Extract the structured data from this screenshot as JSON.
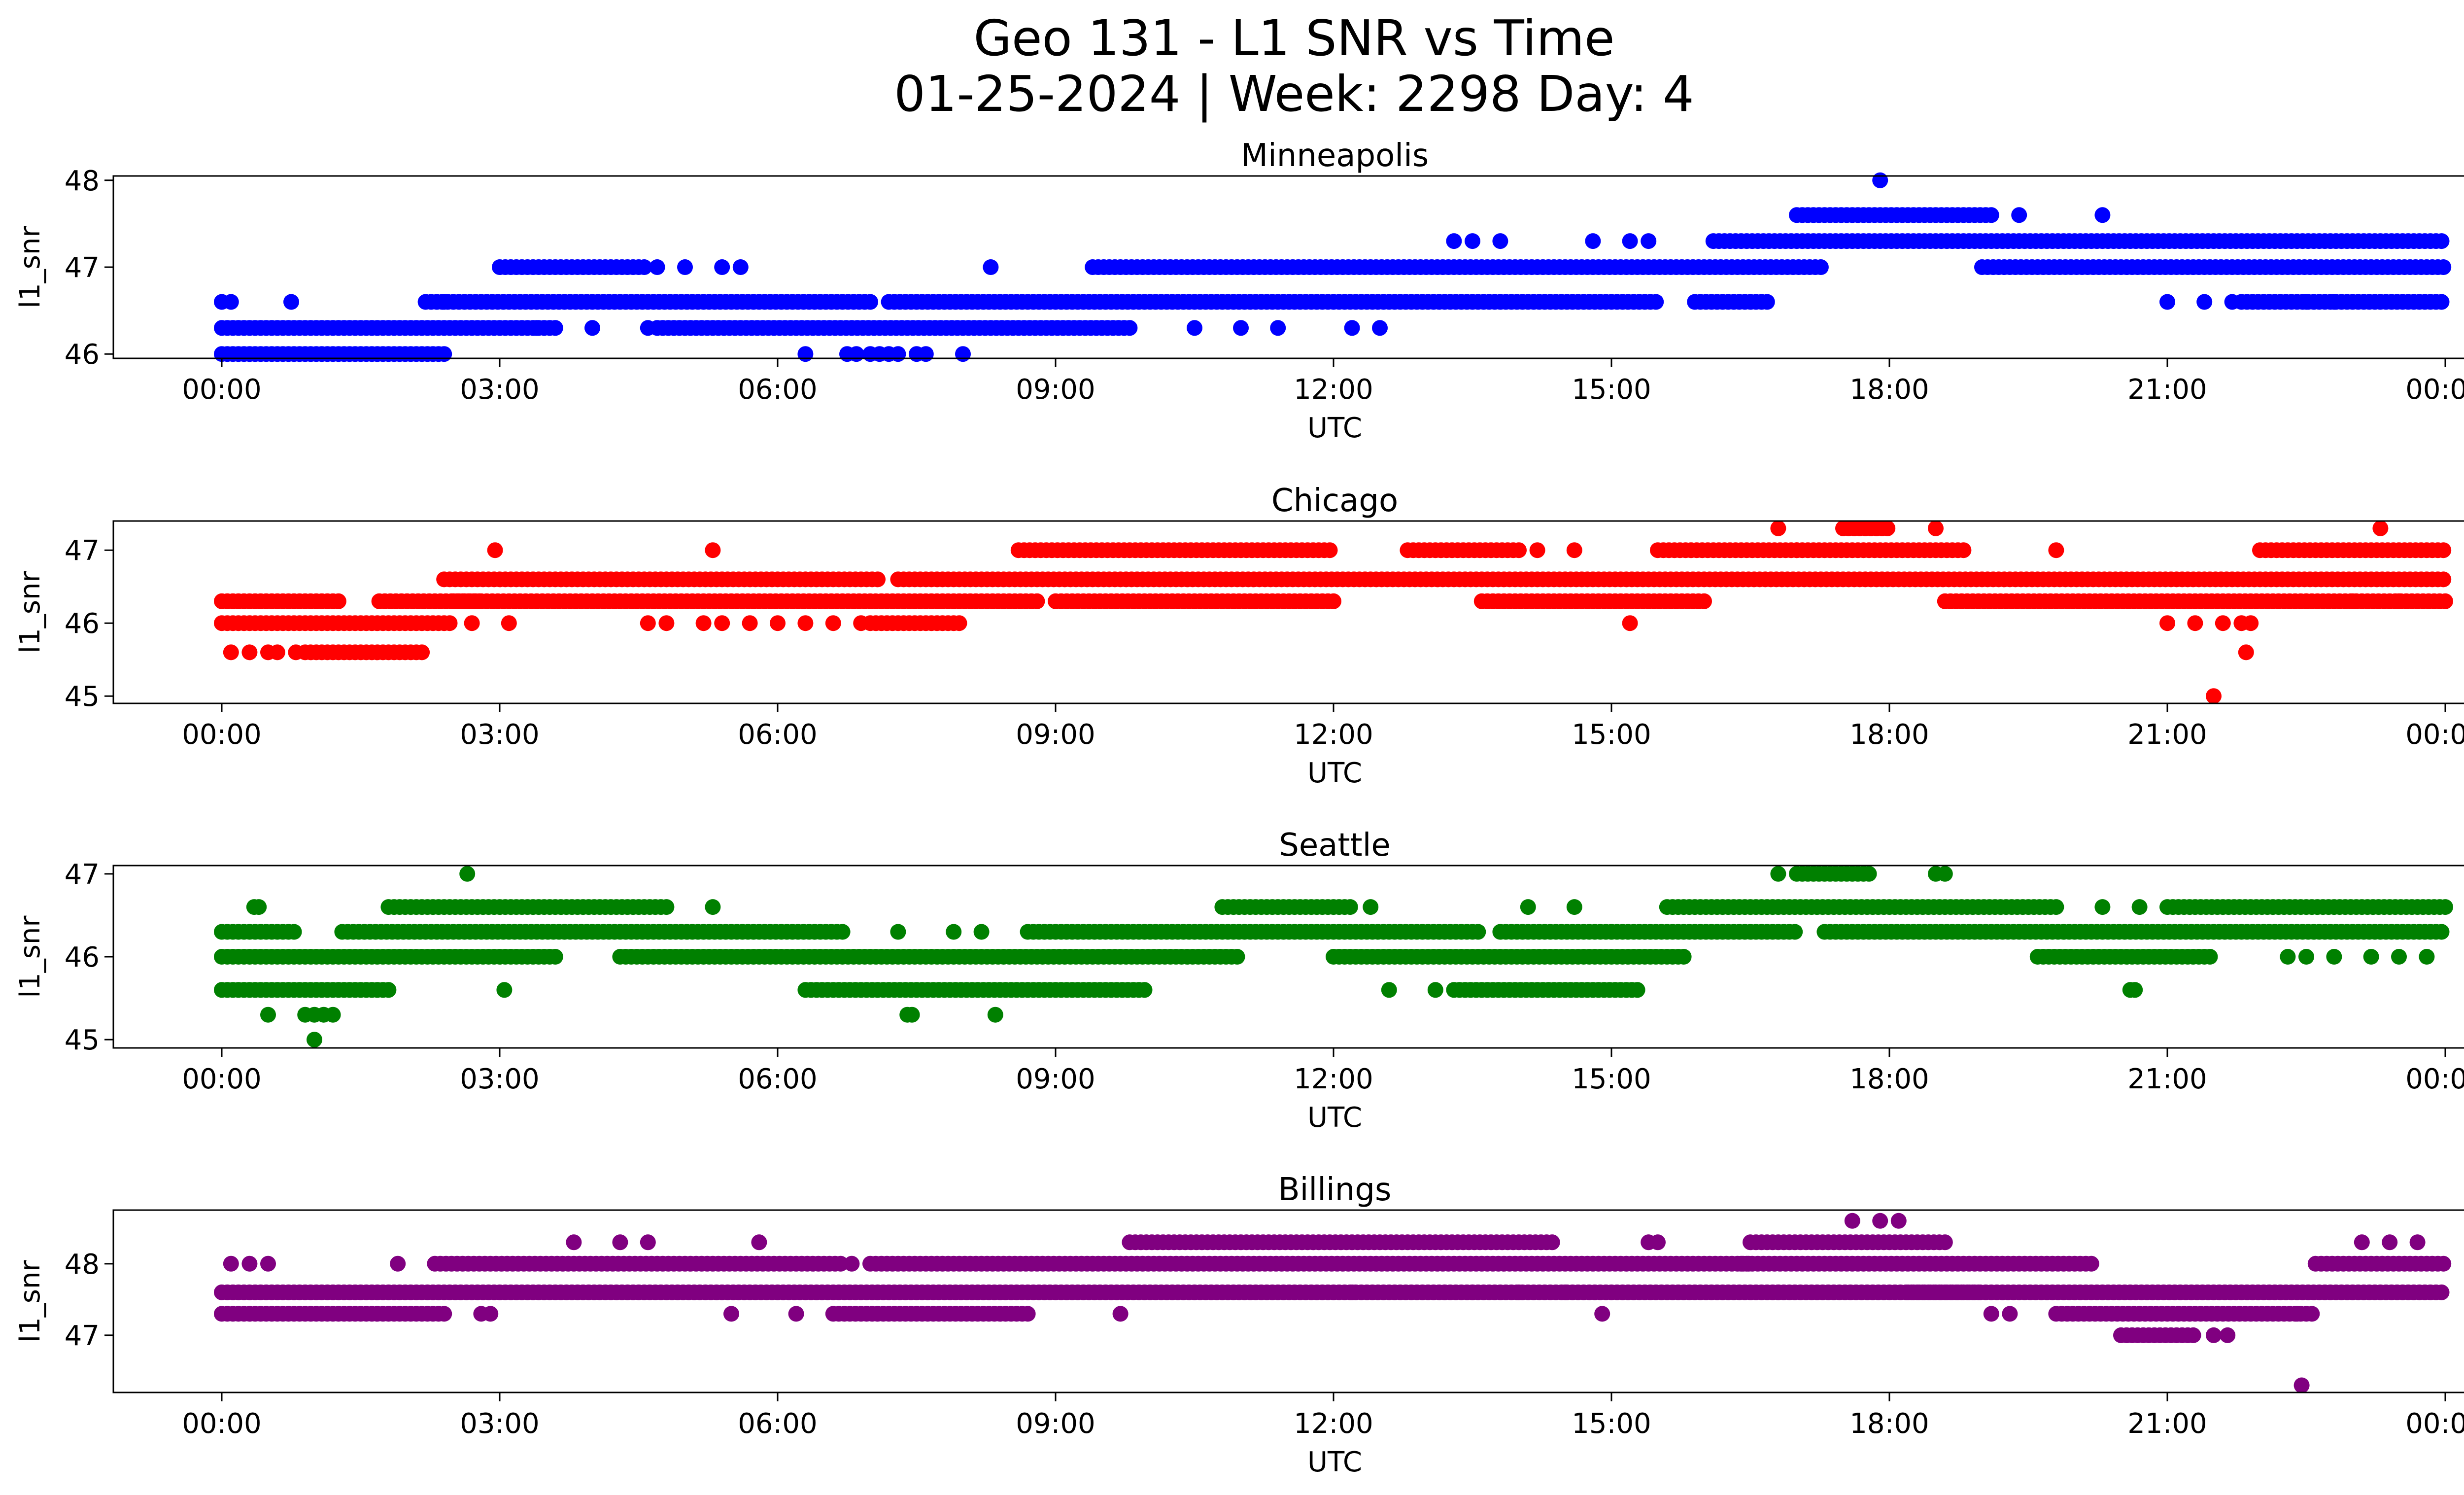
{
  "figure": {
    "title_line1": "Geo 131 - L1 SNR vs Time",
    "title_line2": "01-25-2024 | Week: 2298 Day: 4"
  },
  "chart_data": [
    {
      "type": "scatter",
      "title": "Minneapolis",
      "xlabel": "UTC",
      "ylabel": "l1_snr",
      "color": "#0000ff",
      "xlim": [
        "00:00",
        "24:00"
      ],
      "x_ticks": [
        "00:00",
        "03:00",
        "06:00",
        "09:00",
        "12:00",
        "15:00",
        "18:00",
        "21:00",
        "00:00"
      ],
      "ylim": [
        45.95,
        48.05
      ],
      "y_ticks": [
        46,
        47,
        48
      ],
      "grid": false,
      "bands_hours": [
        {
          "y": 46.0,
          "segs": [
            [
              0.0,
              2.4
            ]
          ]
        },
        {
          "y": 46.3,
          "segs": [
            [
              0.0,
              3.6
            ],
            [
              4.7,
              9.8
            ]
          ]
        },
        {
          "y": 46.6,
          "segs": [
            [
              2.2,
              7.0
            ],
            [
              7.2,
              15.5
            ],
            [
              15.9,
              16.7
            ],
            [
              21.8,
              24.0
            ]
          ]
        },
        {
          "y": 47.0,
          "segs": [
            [
              3.0,
              4.6
            ],
            [
              9.4,
              17.3
            ],
            [
              19.0,
              24.0
            ]
          ]
        },
        {
          "y": 47.3,
          "segs": [
            [
              16.1,
              24.0
            ]
          ]
        },
        {
          "y": 47.6,
          "segs": [
            [
              17.0,
              19.1
            ]
          ]
        }
      ],
      "points_hours": [
        [
          0.0,
          46.6
        ],
        [
          0.1,
          46.6
        ],
        [
          0.75,
          46.6
        ],
        [
          2.4,
          46.6
        ],
        [
          3.4,
          46.3
        ],
        [
          4.0,
          46.3
        ],
        [
          4.6,
          46.3
        ],
        [
          4.7,
          47.0
        ],
        [
          5.0,
          47.0
        ],
        [
          5.4,
          47.0
        ],
        [
          5.6,
          47.0
        ],
        [
          6.3,
          46.0
        ],
        [
          6.75,
          46.0
        ],
        [
          6.85,
          46.0
        ],
        [
          7.0,
          46.0
        ],
        [
          7.1,
          46.0
        ],
        [
          7.2,
          46.0
        ],
        [
          7.3,
          46.0
        ],
        [
          7.5,
          46.0
        ],
        [
          7.6,
          46.0
        ],
        [
          8.0,
          46.0
        ],
        [
          8.3,
          47.0
        ],
        [
          10.5,
          46.3
        ],
        [
          11.0,
          46.3
        ],
        [
          11.4,
          46.3
        ],
        [
          12.2,
          46.3
        ],
        [
          12.5,
          46.3
        ],
        [
          13.3,
          47.3
        ],
        [
          13.5,
          47.3
        ],
        [
          13.8,
          47.3
        ],
        [
          14.8,
          47.3
        ],
        [
          15.2,
          47.3
        ],
        [
          15.4,
          47.3
        ],
        [
          17.9,
          48.0
        ],
        [
          19.4,
          47.6
        ],
        [
          20.3,
          47.6
        ],
        [
          21.0,
          46.6
        ],
        [
          21.4,
          46.6
        ],
        [
          21.7,
          46.6
        ],
        [
          22.5,
          46.6
        ],
        [
          22.8,
          46.6
        ]
      ]
    },
    {
      "type": "scatter",
      "title": "Chicago",
      "xlabel": "UTC",
      "ylabel": "l1_snr",
      "color": "#ff0000",
      "xlim": [
        "00:00",
        "24:00"
      ],
      "x_ticks": [
        "00:00",
        "03:00",
        "06:00",
        "09:00",
        "12:00",
        "15:00",
        "18:00",
        "21:00",
        "00:00"
      ],
      "ylim": [
        44.9,
        47.4
      ],
      "y_ticks": [
        45,
        46,
        47
      ],
      "grid": false,
      "bands_hours": [
        {
          "y": 45.6,
          "segs": [
            [
              0.9,
              2.2
            ]
          ]
        },
        {
          "y": 46.0,
          "segs": [
            [
              0.0,
              2.5
            ],
            [
              7.0,
              8.0
            ]
          ]
        },
        {
          "y": 46.3,
          "segs": [
            [
              0.0,
              1.3
            ],
            [
              1.7,
              2.8
            ],
            [
              2.5,
              8.8
            ],
            [
              9.0,
              12.0
            ],
            [
              13.6,
              16.0
            ],
            [
              18.6,
              24.0
            ]
          ]
        },
        {
          "y": 46.6,
          "segs": [
            [
              2.4,
              7.1
            ],
            [
              7.3,
              24.0
            ]
          ]
        },
        {
          "y": 47.0,
          "segs": [
            [
              8.6,
              12.0
            ],
            [
              12.8,
              14.0
            ],
            [
              15.5,
              18.8
            ],
            [
              22.0,
              24.0
            ]
          ]
        },
        {
          "y": 47.3,
          "segs": [
            [
              17.5,
              18.0
            ]
          ]
        }
      ],
      "points_hours": [
        [
          0.1,
          45.6
        ],
        [
          0.3,
          45.6
        ],
        [
          0.5,
          45.6
        ],
        [
          0.6,
          45.6
        ],
        [
          0.8,
          45.6
        ],
        [
          2.7,
          46.0
        ],
        [
          3.1,
          46.0
        ],
        [
          4.6,
          46.0
        ],
        [
          4.8,
          46.0
        ],
        [
          5.2,
          46.0
        ],
        [
          5.4,
          46.0
        ],
        [
          5.7,
          46.0
        ],
        [
          6.0,
          46.0
        ],
        [
          6.3,
          46.0
        ],
        [
          6.6,
          46.0
        ],
        [
          6.9,
          46.0
        ],
        [
          2.95,
          47.0
        ],
        [
          5.3,
          47.0
        ],
        [
          14.2,
          47.0
        ],
        [
          14.6,
          47.0
        ],
        [
          17.0,
          47.0
        ],
        [
          19.8,
          47.0
        ],
        [
          15.2,
          46.0
        ],
        [
          16.8,
          47.3
        ],
        [
          18.5,
          47.3
        ],
        [
          23.3,
          47.3
        ],
        [
          21.0,
          46.0
        ],
        [
          21.3,
          46.0
        ],
        [
          21.6,
          46.0
        ],
        [
          21.8,
          46.0
        ],
        [
          21.9,
          46.0
        ],
        [
          21.85,
          45.6
        ],
        [
          21.5,
          45.0
        ],
        [
          22.5,
          46.3
        ],
        [
          23.0,
          46.3
        ],
        [
          23.5,
          46.3
        ]
      ]
    },
    {
      "type": "scatter",
      "title": "Seattle",
      "xlabel": "UTC",
      "ylabel": "l1_snr",
      "color": "#008000",
      "xlim": [
        "00:00",
        "24:00"
      ],
      "x_ticks": [
        "00:00",
        "03:00",
        "06:00",
        "09:00",
        "12:00",
        "15:00",
        "18:00",
        "21:00",
        "00:00"
      ],
      "ylim": [
        44.9,
        47.1
      ],
      "y_ticks": [
        45,
        46,
        47
      ],
      "grid": false,
      "bands_hours": [
        {
          "y": 45.6,
          "segs": [
            [
              0.0,
              1.8
            ],
            [
              6.3,
              10.0
            ],
            [
              13.3,
              15.3
            ]
          ]
        },
        {
          "y": 46.0,
          "segs": [
            [
              0.0,
              3.6
            ],
            [
              4.3,
              11.0
            ],
            [
              12.0,
              15.8
            ],
            [
              19.6,
              21.5
            ]
          ]
        },
        {
          "y": 46.3,
          "segs": [
            [
              0.0,
              0.8
            ],
            [
              1.3,
              6.7
            ],
            [
              8.7,
              13.6
            ],
            [
              13.8,
              15.0
            ],
            [
              15.0,
              17.0
            ],
            [
              17.3,
              24.0
            ]
          ]
        },
        {
          "y": 46.6,
          "segs": [
            [
              1.8,
              4.8
            ],
            [
              10.8,
              12.2
            ],
            [
              15.6,
              19.8
            ],
            [
              21.0,
              24.0
            ]
          ]
        },
        {
          "y": 47.0,
          "segs": [
            [
              17.0,
              17.8
            ]
          ]
        }
      ],
      "points_hours": [
        [
          0.4,
          46.6
        ],
        [
          0.35,
          46.6
        ],
        [
          0.5,
          45.3
        ],
        [
          0.9,
          45.3
        ],
        [
          1.0,
          45.3
        ],
        [
          1.1,
          45.3
        ],
        [
          1.2,
          45.3
        ],
        [
          1.0,
          45.0
        ],
        [
          2.65,
          47.0
        ],
        [
          3.05,
          45.6
        ],
        [
          5.3,
          46.6
        ],
        [
          7.4,
          45.3
        ],
        [
          7.45,
          45.3
        ],
        [
          8.35,
          45.3
        ],
        [
          7.3,
          46.3
        ],
        [
          7.9,
          46.3
        ],
        [
          8.2,
          46.3
        ],
        [
          12.4,
          46.6
        ],
        [
          12.6,
          45.6
        ],
        [
          13.1,
          45.6
        ],
        [
          14.1,
          46.6
        ],
        [
          14.6,
          46.6
        ],
        [
          16.8,
          47.0
        ],
        [
          18.5,
          47.0
        ],
        [
          18.6,
          47.0
        ],
        [
          20.3,
          46.6
        ],
        [
          20.7,
          46.6
        ],
        [
          20.6,
          45.6
        ],
        [
          20.65,
          45.6
        ],
        [
          22.3,
          46.0
        ],
        [
          22.5,
          46.0
        ],
        [
          22.8,
          46.0
        ],
        [
          23.2,
          46.0
        ],
        [
          23.5,
          46.0
        ],
        [
          23.8,
          46.0
        ]
      ]
    },
    {
      "type": "scatter",
      "title": "Billings",
      "xlabel": "UTC",
      "ylabel": "l1_snr",
      "color": "#800080",
      "xlim": [
        "00:00",
        "24:00"
      ],
      "x_ticks": [
        "00:00",
        "03:00",
        "06:00",
        "09:00",
        "12:00",
        "15:00",
        "18:00",
        "21:00",
        "00:00"
      ],
      "ylim": [
        46.2,
        48.75
      ],
      "y_ticks": [
        47,
        48
      ],
      "grid": false,
      "bands_hours": [
        {
          "y": 47.3,
          "segs": [
            [
              0.0,
              2.4
            ],
            [
              6.6,
              8.7
            ],
            [
              19.8,
              22.6
            ]
          ]
        },
        {
          "y": 47.6,
          "segs": [
            [
              0.0,
              19.0
            ],
            [
              18.2,
              24.0
            ]
          ]
        },
        {
          "y": 48.0,
          "segs": [
            [
              2.3,
              6.7
            ],
            [
              7.0,
              16.5
            ],
            [
              16.4,
              20.2
            ],
            [
              22.6,
              24.0
            ]
          ]
        },
        {
          "y": 48.3,
          "segs": [
            [
              9.8,
              14.4
            ],
            [
              16.5,
              18.6
            ]
          ]
        },
        {
          "y": 47.0,
          "segs": [
            [
              20.5,
              21.3
            ]
          ]
        }
      ],
      "points_hours": [
        [
          0.1,
          48.0
        ],
        [
          0.3,
          48.0
        ],
        [
          0.5,
          48.0
        ],
        [
          1.9,
          48.0
        ],
        [
          2.8,
          47.3
        ],
        [
          2.9,
          47.3
        ],
        [
          3.8,
          48.3
        ],
        [
          4.3,
          48.3
        ],
        [
          4.6,
          48.3
        ],
        [
          5.8,
          48.3
        ],
        [
          5.5,
          47.3
        ],
        [
          6.2,
          47.3
        ],
        [
          6.8,
          48.0
        ],
        [
          9.7,
          47.3
        ],
        [
          12.2,
          47.6
        ],
        [
          13.2,
          47.6
        ],
        [
          13.5,
          47.6
        ],
        [
          14.0,
          47.6
        ],
        [
          14.5,
          47.6
        ],
        [
          14.9,
          47.3
        ],
        [
          15.4,
          48.3
        ],
        [
          15.5,
          48.3
        ],
        [
          16.8,
          47.6
        ],
        [
          17.6,
          48.6
        ],
        [
          17.9,
          48.6
        ],
        [
          18.1,
          48.6
        ],
        [
          19.1,
          47.3
        ],
        [
          19.3,
          47.3
        ],
        [
          21.5,
          47.0
        ],
        [
          21.65,
          47.0
        ],
        [
          22.4,
          47.3
        ],
        [
          22.45,
          46.3
        ],
        [
          23.1,
          48.3
        ],
        [
          23.4,
          48.3
        ],
        [
          23.7,
          48.3
        ]
      ]
    }
  ]
}
